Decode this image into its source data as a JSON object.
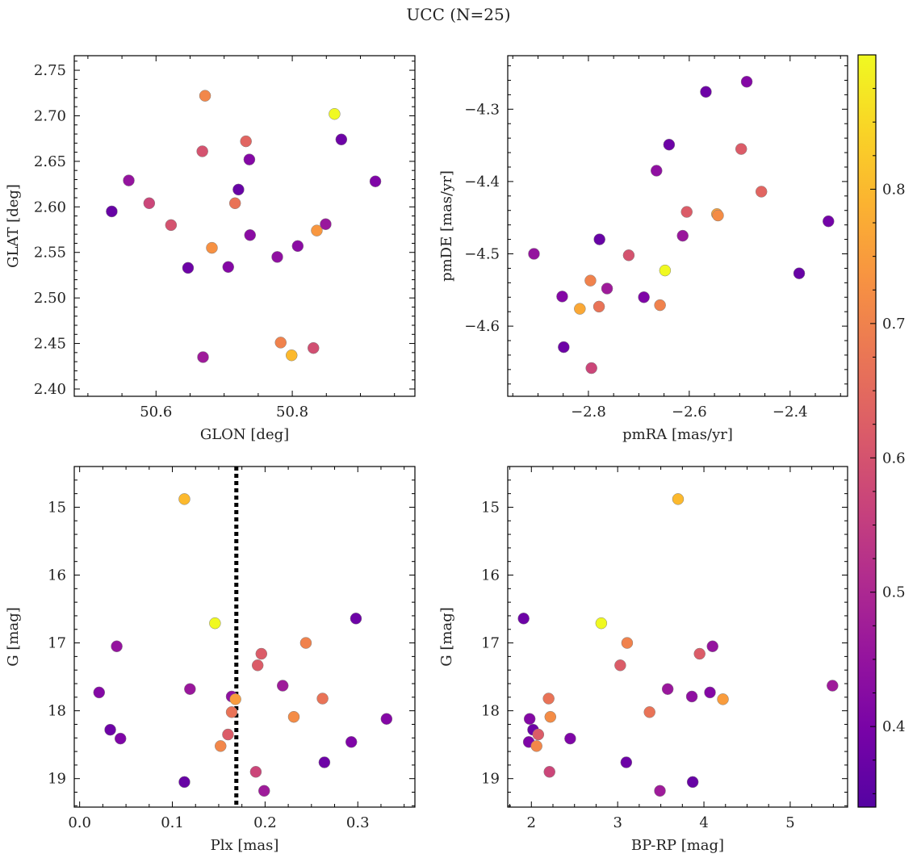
{
  "figure_title": "UCC (N=25)",
  "colorbar": {
    "range": [
      0.34,
      0.9
    ],
    "ticks": [
      0.4,
      0.5,
      0.6,
      0.7,
      0.8
    ],
    "colormap": "plasma"
  },
  "chart_data": [
    {
      "type": "scatter",
      "xlabel": "GLON [deg]",
      "ylabel": "GLAT [deg]",
      "xlim": [
        50.48,
        50.98
      ],
      "ylim": [
        2.392,
        2.766
      ],
      "xticks": [
        50.6,
        50.8
      ],
      "xtick_labels": [
        "50.6",
        "50.8"
      ],
      "yticks": [
        2.4,
        2.45,
        2.5,
        2.55,
        2.6,
        2.65,
        2.7,
        2.75
      ],
      "ytick_labels": [
        "2.40",
        "2.45",
        "2.50",
        "2.55",
        "2.60",
        "2.65",
        "2.70",
        "2.75"
      ],
      "y_inverted": false,
      "points": [
        {
          "x": 50.535,
          "y": 2.595,
          "c": 0.37
        },
        {
          "x": 50.56,
          "y": 2.629,
          "c": 0.45
        },
        {
          "x": 50.59,
          "y": 2.604,
          "c": 0.57
        },
        {
          "x": 50.622,
          "y": 2.58,
          "c": 0.6
        },
        {
          "x": 50.647,
          "y": 2.533,
          "c": 0.38
        },
        {
          "x": 50.668,
          "y": 2.661,
          "c": 0.6
        },
        {
          "x": 50.672,
          "y": 2.722,
          "c": 0.71
        },
        {
          "x": 50.669,
          "y": 2.435,
          "c": 0.47
        },
        {
          "x": 50.682,
          "y": 2.555,
          "c": 0.73
        },
        {
          "x": 50.706,
          "y": 2.534,
          "c": 0.42
        },
        {
          "x": 50.716,
          "y": 2.604,
          "c": 0.67
        },
        {
          "x": 50.721,
          "y": 2.619,
          "c": 0.37
        },
        {
          "x": 50.732,
          "y": 2.672,
          "c": 0.64
        },
        {
          "x": 50.737,
          "y": 2.652,
          "c": 0.42
        },
        {
          "x": 50.738,
          "y": 2.569,
          "c": 0.43
        },
        {
          "x": 50.778,
          "y": 2.545,
          "c": 0.44
        },
        {
          "x": 50.783,
          "y": 2.451,
          "c": 0.7
        },
        {
          "x": 50.799,
          "y": 2.437,
          "c": 0.8
        },
        {
          "x": 50.808,
          "y": 2.557,
          "c": 0.43
        },
        {
          "x": 50.831,
          "y": 2.445,
          "c": 0.59
        },
        {
          "x": 50.836,
          "y": 2.574,
          "c": 0.74
        },
        {
          "x": 50.849,
          "y": 2.581,
          "c": 0.46
        },
        {
          "x": 50.862,
          "y": 2.702,
          "c": 0.9
        },
        {
          "x": 50.872,
          "y": 2.674,
          "c": 0.38
        },
        {
          "x": 50.922,
          "y": 2.628,
          "c": 0.41
        }
      ]
    },
    {
      "type": "scatter",
      "xlabel": "pmRA [mas/yr]",
      "ylabel": "pmDE [mas/yr]",
      "xlim": [
        -2.96,
        -2.286
      ],
      "ylim": [
        -4.697,
        -4.226
      ],
      "xticks": [
        -2.8,
        -2.6,
        -2.4
      ],
      "xtick_labels": [
        "−2.8",
        "−2.6",
        "−2.4"
      ],
      "yticks": [
        -4.6,
        -4.5,
        -4.4,
        -4.3
      ],
      "ytick_labels": [
        "−4.6",
        "−4.5",
        "−4.4",
        "−4.3"
      ],
      "y_inverted": false,
      "points": [
        {
          "x": -2.908,
          "y": -4.5,
          "c": 0.45
        },
        {
          "x": -2.852,
          "y": -4.559,
          "c": 0.42
        },
        {
          "x": -2.849,
          "y": -4.629,
          "c": 0.38
        },
        {
          "x": -2.817,
          "y": -4.576,
          "c": 0.77
        },
        {
          "x": -2.796,
          "y": -4.537,
          "c": 0.7
        },
        {
          "x": -2.794,
          "y": -4.658,
          "c": 0.57
        },
        {
          "x": -2.779,
          "y": -4.573,
          "c": 0.67
        },
        {
          "x": -2.778,
          "y": -4.48,
          "c": 0.37
        },
        {
          "x": -2.763,
          "y": -4.548,
          "c": 0.47
        },
        {
          "x": -2.72,
          "y": -4.502,
          "c": 0.6
        },
        {
          "x": -2.69,
          "y": -4.56,
          "c": 0.41
        },
        {
          "x": -2.665,
          "y": -4.385,
          "c": 0.44
        },
        {
          "x": -2.658,
          "y": -4.571,
          "c": 0.7
        },
        {
          "x": -2.648,
          "y": -4.523,
          "c": 0.9
        },
        {
          "x": -2.64,
          "y": -4.349,
          "c": 0.38
        },
        {
          "x": -2.613,
          "y": -4.475,
          "c": 0.46
        },
        {
          "x": -2.605,
          "y": -4.442,
          "c": 0.62
        },
        {
          "x": -2.567,
          "y": -4.276,
          "c": 0.38
        },
        {
          "x": -2.545,
          "y": -4.445,
          "c": 0.76
        },
        {
          "x": -2.543,
          "y": -4.447,
          "c": 0.72
        },
        {
          "x": -2.497,
          "y": -4.355,
          "c": 0.62
        },
        {
          "x": -2.486,
          "y": -4.262,
          "c": 0.42
        },
        {
          "x": -2.457,
          "y": -4.414,
          "c": 0.64
        },
        {
          "x": -2.382,
          "y": -4.527,
          "c": 0.37
        },
        {
          "x": -2.324,
          "y": -4.455,
          "c": 0.39
        }
      ]
    },
    {
      "type": "scatter",
      "xlabel": "Plx [mas]",
      "ylabel": "G [mag]",
      "xlim": [
        -0.0058,
        0.3616
      ],
      "ylim": [
        14.4,
        19.42
      ],
      "xticks": [
        0.0,
        0.1,
        0.2,
        0.3
      ],
      "xtick_labels": [
        "0.0",
        "0.1",
        "0.2",
        "0.3"
      ],
      "yticks": [
        15,
        16,
        17,
        18,
        19
      ],
      "ytick_labels": [
        "15",
        "16",
        "17",
        "18",
        "19"
      ],
      "y_inverted": true,
      "vline": {
        "x": 0.169,
        "style": "dotted",
        "color": "#000000"
      },
      "points": [
        {
          "x": 0.021,
          "y": 17.73,
          "c": 0.42
        },
        {
          "x": 0.033,
          "y": 18.28,
          "c": 0.38
        },
        {
          "x": 0.04,
          "y": 17.05,
          "c": 0.45
        },
        {
          "x": 0.044,
          "y": 18.41,
          "c": 0.41
        },
        {
          "x": 0.113,
          "y": 14.88,
          "c": 0.8
        },
        {
          "x": 0.113,
          "y": 19.05,
          "c": 0.37
        },
        {
          "x": 0.119,
          "y": 17.68,
          "c": 0.46
        },
        {
          "x": 0.146,
          "y": 16.71,
          "c": 0.9
        },
        {
          "x": 0.152,
          "y": 18.52,
          "c": 0.71
        },
        {
          "x": 0.16,
          "y": 18.35,
          "c": 0.62
        },
        {
          "x": 0.164,
          "y": 17.79,
          "c": 0.44
        },
        {
          "x": 0.164,
          "y": 18.02,
          "c": 0.67
        },
        {
          "x": 0.168,
          "y": 17.83,
          "c": 0.75
        },
        {
          "x": 0.19,
          "y": 18.9,
          "c": 0.57
        },
        {
          "x": 0.192,
          "y": 17.33,
          "c": 0.62
        },
        {
          "x": 0.196,
          "y": 17.16,
          "c": 0.62
        },
        {
          "x": 0.199,
          "y": 19.18,
          "c": 0.47
        },
        {
          "x": 0.219,
          "y": 17.63,
          "c": 0.47
        },
        {
          "x": 0.231,
          "y": 18.09,
          "c": 0.72
        },
        {
          "x": 0.244,
          "y": 17.0,
          "c": 0.7
        },
        {
          "x": 0.262,
          "y": 17.82,
          "c": 0.67
        },
        {
          "x": 0.264,
          "y": 18.76,
          "c": 0.38
        },
        {
          "x": 0.293,
          "y": 18.46,
          "c": 0.41
        },
        {
          "x": 0.298,
          "y": 16.64,
          "c": 0.38
        },
        {
          "x": 0.331,
          "y": 18.12,
          "c": 0.42
        }
      ]
    },
    {
      "type": "scatter",
      "xlabel": "BP-RP [mag]",
      "ylabel": "G [mag]",
      "xlim": [
        1.726,
        5.665
      ],
      "ylim": [
        14.4,
        19.42
      ],
      "xticks": [
        2,
        3,
        4,
        5
      ],
      "xtick_labels": [
        "2",
        "3",
        "4",
        "5"
      ],
      "yticks": [
        15,
        16,
        17,
        18,
        19
      ],
      "ytick_labels": [
        "15",
        "16",
        "17",
        "18",
        "19"
      ],
      "y_inverted": true,
      "points": [
        {
          "x": 1.91,
          "y": 16.64,
          "c": 0.38
        },
        {
          "x": 1.97,
          "y": 18.46,
          "c": 0.41
        },
        {
          "x": 1.98,
          "y": 18.12,
          "c": 0.42
        },
        {
          "x": 2.02,
          "y": 18.28,
          "c": 0.38
        },
        {
          "x": 2.06,
          "y": 18.52,
          "c": 0.71
        },
        {
          "x": 2.08,
          "y": 18.35,
          "c": 0.62
        },
        {
          "x": 2.2,
          "y": 17.82,
          "c": 0.67
        },
        {
          "x": 2.21,
          "y": 18.9,
          "c": 0.57
        },
        {
          "x": 2.22,
          "y": 18.09,
          "c": 0.72
        },
        {
          "x": 2.45,
          "y": 18.41,
          "c": 0.41
        },
        {
          "x": 2.81,
          "y": 16.71,
          "c": 0.9
        },
        {
          "x": 3.03,
          "y": 17.33,
          "c": 0.62
        },
        {
          "x": 3.1,
          "y": 18.76,
          "c": 0.38
        },
        {
          "x": 3.11,
          "y": 17.0,
          "c": 0.7
        },
        {
          "x": 3.37,
          "y": 18.02,
          "c": 0.67
        },
        {
          "x": 3.49,
          "y": 19.18,
          "c": 0.47
        },
        {
          "x": 3.58,
          "y": 17.68,
          "c": 0.46
        },
        {
          "x": 3.7,
          "y": 14.88,
          "c": 0.8
        },
        {
          "x": 3.86,
          "y": 17.79,
          "c": 0.44
        },
        {
          "x": 3.87,
          "y": 19.05,
          "c": 0.37
        },
        {
          "x": 3.95,
          "y": 17.16,
          "c": 0.62
        },
        {
          "x": 4.07,
          "y": 17.73,
          "c": 0.42
        },
        {
          "x": 4.1,
          "y": 17.05,
          "c": 0.45
        },
        {
          "x": 4.22,
          "y": 17.83,
          "c": 0.75
        },
        {
          "x": 5.49,
          "y": 17.63,
          "c": 0.47
        }
      ]
    }
  ]
}
